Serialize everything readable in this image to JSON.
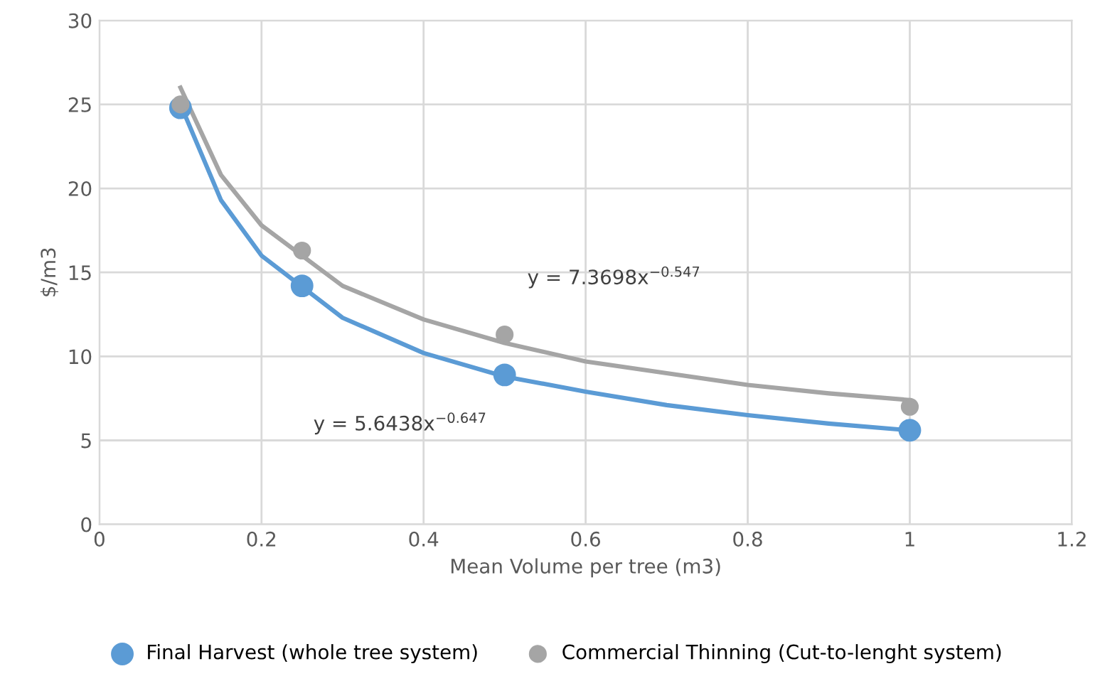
{
  "chart_data": {
    "type": "scatter",
    "xlabel": "Mean Volume per tree (m3)",
    "ylabel": "$/m3",
    "xlim": [
      0,
      1.2
    ],
    "xticks": [
      0,
      0.2,
      0.4,
      0.6,
      0.8,
      1,
      1.2
    ],
    "ylim": [
      0,
      30
    ],
    "yticks": [
      0,
      5,
      10,
      15,
      20,
      25,
      30
    ],
    "grid": true,
    "legend": "bottom",
    "series": [
      {
        "type": "line",
        "marker": "none",
        "color": "#5b9bd5",
        "x": [
          0.1,
          0.15,
          0.2,
          0.3,
          0.4,
          0.5,
          0.6,
          0.7,
          0.8,
          0.9,
          1
        ],
        "values": [
          25.0,
          19.3,
          16.0,
          12.3,
          10.2,
          8.8,
          7.9,
          7.1,
          6.5,
          6.0,
          5.6
        ]
      },
      {
        "type": "line",
        "marker": "none",
        "color": "#a5a5a5",
        "x": [
          0.1,
          0.15,
          0.2,
          0.3,
          0.4,
          0.5,
          0.6,
          0.7,
          0.8,
          0.9,
          1
        ],
        "values": [
          26.0,
          20.8,
          17.8,
          14.2,
          12.2,
          10.8,
          9.7,
          9.0,
          8.3,
          7.8,
          7.4
        ]
      },
      {
        "marker": "circle",
        "name": "Final Harvest (whole tree system)",
        "color": "#5b9bd5",
        "x": [
          0.1,
          0.25,
          0.5,
          1
        ],
        "values": [
          24.8,
          14.2,
          8.9,
          5.6
        ]
      },
      {
        "marker": "circle",
        "name": "Commercial Thinning (Cut-to-lenght system)",
        "color": "#a5a5a5",
        "x": [
          0.1,
          0.25,
          0.5,
          1
        ],
        "values": [
          25.0,
          16.3,
          11.3,
          7.0
        ]
      }
    ],
    "annotations": [
      "y = 7.3698x$^{−0.547}$",
      "y = 5.6438x$^{−0.647}$"
    ]
  }
}
